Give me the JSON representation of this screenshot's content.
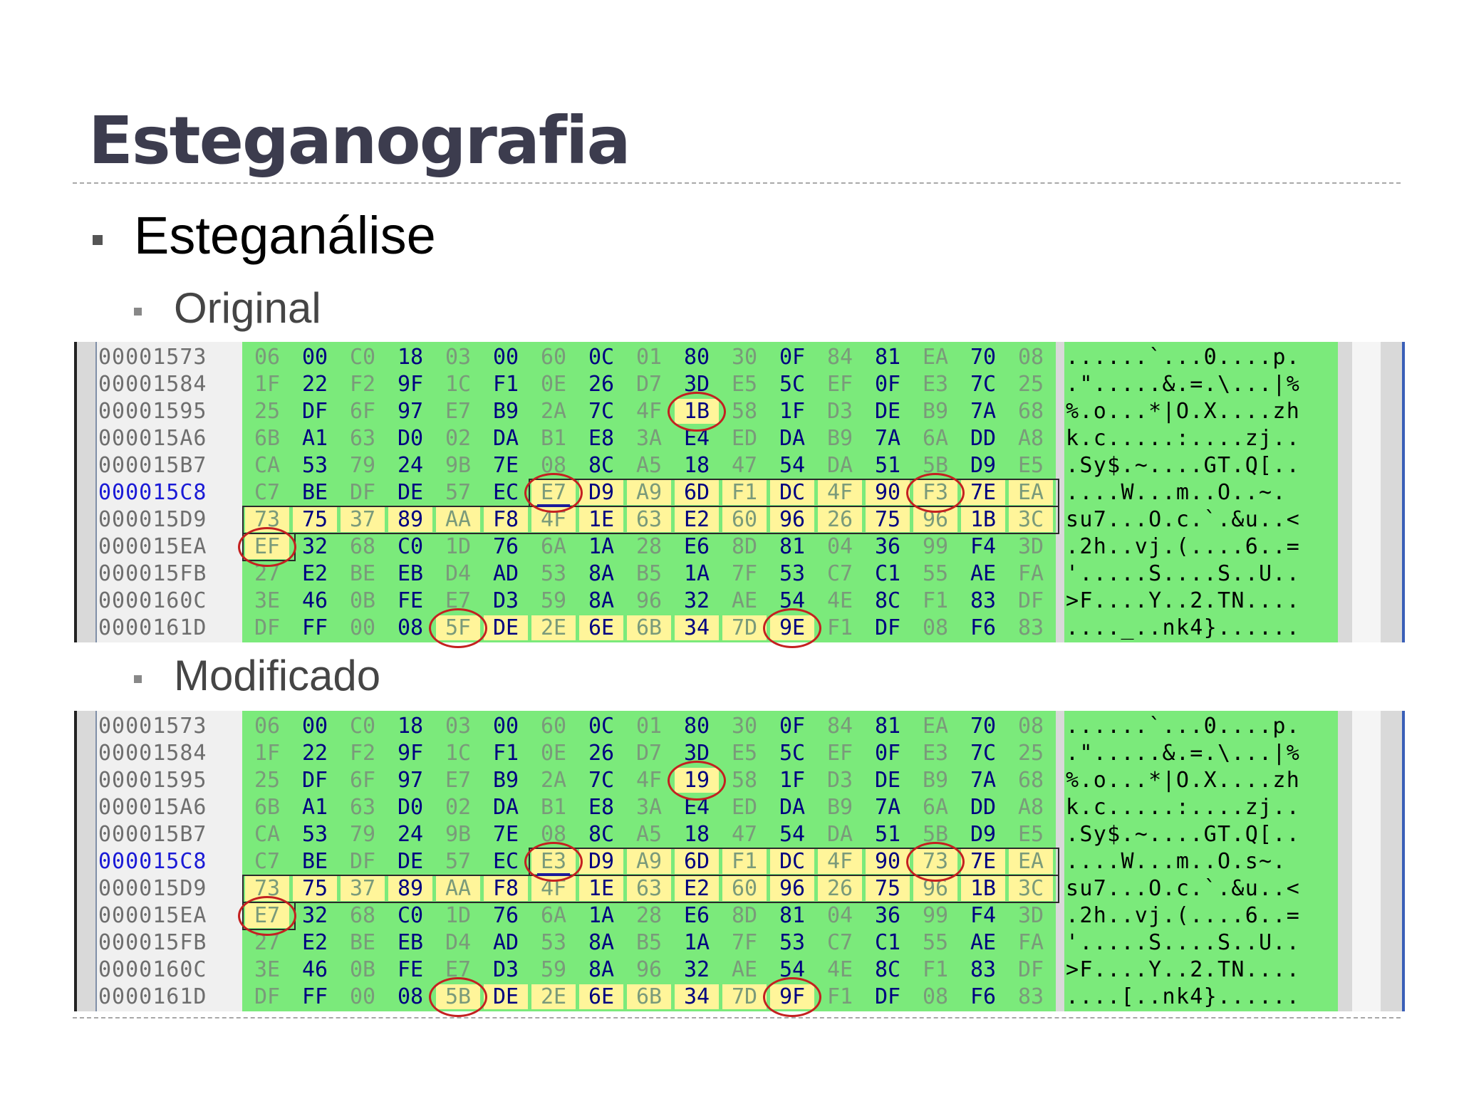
{
  "title": "Esteganografia",
  "bullet_l1": "Esteganálise",
  "section_original": "Original",
  "section_modified": "Modificado",
  "original": {
    "rows": [
      {
        "addr": "00001573",
        "bytes": [
          "06",
          "00",
          "C0",
          "18",
          "03",
          "00",
          "60",
          "0C",
          "01",
          "80",
          "30",
          "0F",
          "84",
          "81",
          "EA",
          "70",
          "08"
        ],
        "ascii": "......`...0....p."
      },
      {
        "addr": "00001584",
        "bytes": [
          "1F",
          "22",
          "F2",
          "9F",
          "1C",
          "F1",
          "0E",
          "26",
          "D7",
          "3D",
          "E5",
          "5C",
          "EF",
          "0F",
          "E3",
          "7C",
          "25"
        ],
        "ascii": ".\".....&.=.\\...|%"
      },
      {
        "addr": "00001595",
        "bytes": [
          "25",
          "DF",
          "6F",
          "97",
          "E7",
          "B9",
          "2A",
          "7C",
          "4F",
          "1B",
          "58",
          "1F",
          "D3",
          "DE",
          "B9",
          "7A",
          "68"
        ],
        "ascii": "%.o...*|O.X....zh"
      },
      {
        "addr": "000015A6",
        "bytes": [
          "6B",
          "A1",
          "63",
          "D0",
          "02",
          "DA",
          "B1",
          "E8",
          "3A",
          "E4",
          "ED",
          "DA",
          "B9",
          "7A",
          "6A",
          "DD",
          "A8"
        ],
        "ascii": "k.c.....:....zj.."
      },
      {
        "addr": "000015B7",
        "bytes": [
          "CA",
          "53",
          "79",
          "24",
          "9B",
          "7E",
          "08",
          "8C",
          "A5",
          "18",
          "47",
          "54",
          "DA",
          "51",
          "5B",
          "D9",
          "E5"
        ],
        "ascii": ".Sy$.~....GT.Q[.."
      },
      {
        "addr": "000015C8",
        "bytes": [
          "C7",
          "BE",
          "DF",
          "DE",
          "57",
          "EC",
          "E7",
          "D9",
          "A9",
          "6D",
          "F1",
          "DC",
          "4F",
          "90",
          "F3",
          "7E",
          "EA"
        ],
        "ascii": "....W...m..O..~."
      },
      {
        "addr": "000015D9",
        "bytes": [
          "73",
          "75",
          "37",
          "89",
          "AA",
          "F8",
          "4F",
          "1E",
          "63",
          "E2",
          "60",
          "96",
          "26",
          "75",
          "96",
          "1B",
          "3C"
        ],
        "ascii": "su7...O.c.`.&u..<"
      },
      {
        "addr": "000015EA",
        "bytes": [
          "EF",
          "32",
          "68",
          "C0",
          "1D",
          "76",
          "6A",
          "1A",
          "28",
          "E6",
          "8D",
          "81",
          "04",
          "36",
          "99",
          "F4",
          "3D"
        ],
        "ascii": ".2h..vj.(....6..="
      },
      {
        "addr": "000015FB",
        "bytes": [
          "27",
          "E2",
          "BE",
          "EB",
          "D4",
          "AD",
          "53",
          "8A",
          "B5",
          "1A",
          "7F",
          "53",
          "C7",
          "C1",
          "55",
          "AE",
          "FA"
        ],
        "ascii": "'.....S....S..U.."
      },
      {
        "addr": "0000160C",
        "bytes": [
          "3E",
          "46",
          "0B",
          "FE",
          "E7",
          "D3",
          "59",
          "8A",
          "96",
          "32",
          "AE",
          "54",
          "4E",
          "8C",
          "F1",
          "83",
          "DF"
        ],
        "ascii": ">F....Y..2.TN...."
      },
      {
        "addr": "0000161D",
        "bytes": [
          "DF",
          "FF",
          "00",
          "08",
          "5F",
          "DE",
          "2E",
          "6E",
          "6B",
          "34",
          "7D",
          "9E",
          "F1",
          "DF",
          "08",
          "F6",
          "83"
        ],
        "ascii": "...._..nk4}......"
      }
    ]
  },
  "modified": {
    "rows": [
      {
        "addr": "00001573",
        "bytes": [
          "06",
          "00",
          "C0",
          "18",
          "03",
          "00",
          "60",
          "0C",
          "01",
          "80",
          "30",
          "0F",
          "84",
          "81",
          "EA",
          "70",
          "08"
        ],
        "ascii": "......`...0....p."
      },
      {
        "addr": "00001584",
        "bytes": [
          "1F",
          "22",
          "F2",
          "9F",
          "1C",
          "F1",
          "0E",
          "26",
          "D7",
          "3D",
          "E5",
          "5C",
          "EF",
          "0F",
          "E3",
          "7C",
          "25"
        ],
        "ascii": ".\".....&.=.\\...|%"
      },
      {
        "addr": "00001595",
        "bytes": [
          "25",
          "DF",
          "6F",
          "97",
          "E7",
          "B9",
          "2A",
          "7C",
          "4F",
          "19",
          "58",
          "1F",
          "D3",
          "DE",
          "B9",
          "7A",
          "68"
        ],
        "ascii": "%.o...*|O.X....zh"
      },
      {
        "addr": "000015A6",
        "bytes": [
          "6B",
          "A1",
          "63",
          "D0",
          "02",
          "DA",
          "B1",
          "E8",
          "3A",
          "E4",
          "ED",
          "DA",
          "B9",
          "7A",
          "6A",
          "DD",
          "A8"
        ],
        "ascii": "k.c.....:....zj.."
      },
      {
        "addr": "000015B7",
        "bytes": [
          "CA",
          "53",
          "79",
          "24",
          "9B",
          "7E",
          "08",
          "8C",
          "A5",
          "18",
          "47",
          "54",
          "DA",
          "51",
          "5B",
          "D9",
          "E5"
        ],
        "ascii": ".Sy$.~....GT.Q[.."
      },
      {
        "addr": "000015C8",
        "bytes": [
          "C7",
          "BE",
          "DF",
          "DE",
          "57",
          "EC",
          "E3",
          "D9",
          "A9",
          "6D",
          "F1",
          "DC",
          "4F",
          "90",
          "73",
          "7E",
          "EA"
        ],
        "ascii": "....W...m..O.s~."
      },
      {
        "addr": "000015D9",
        "bytes": [
          "73",
          "75",
          "37",
          "89",
          "AA",
          "F8",
          "4F",
          "1E",
          "63",
          "E2",
          "60",
          "96",
          "26",
          "75",
          "96",
          "1B",
          "3C"
        ],
        "ascii": "su7...O.c.`.&u..<"
      },
      {
        "addr": "000015EA",
        "bytes": [
          "E7",
          "32",
          "68",
          "C0",
          "1D",
          "76",
          "6A",
          "1A",
          "28",
          "E6",
          "8D",
          "81",
          "04",
          "36",
          "99",
          "F4",
          "3D"
        ],
        "ascii": ".2h..vj.(....6..="
      },
      {
        "addr": "000015FB",
        "bytes": [
          "27",
          "E2",
          "BE",
          "EB",
          "D4",
          "AD",
          "53",
          "8A",
          "B5",
          "1A",
          "7F",
          "53",
          "C7",
          "C1",
          "55",
          "AE",
          "FA"
        ],
        "ascii": "'.....S....S..U.."
      },
      {
        "addr": "0000160C",
        "bytes": [
          "3E",
          "46",
          "0B",
          "FE",
          "E7",
          "D3",
          "59",
          "8A",
          "96",
          "32",
          "AE",
          "54",
          "4E",
          "8C",
          "F1",
          "83",
          "DF"
        ],
        "ascii": ">F....Y..2.TN...."
      },
      {
        "addr": "0000161D",
        "bytes": [
          "DF",
          "FF",
          "00",
          "08",
          "5B",
          "DE",
          "2E",
          "6E",
          "6B",
          "34",
          "7D",
          "9F",
          "F1",
          "DF",
          "08",
          "F6",
          "83"
        ],
        "ascii": "....[..nk4}......"
      }
    ]
  },
  "current_address": "000015C8",
  "colors": {
    "background_green": "#7bea7b",
    "highlight_yellow": "#fff59a",
    "circle_red": "#c42020",
    "dark_byte": "#000080",
    "light_byte": "#7a9a7a",
    "address_current": "#1a1ad6"
  }
}
